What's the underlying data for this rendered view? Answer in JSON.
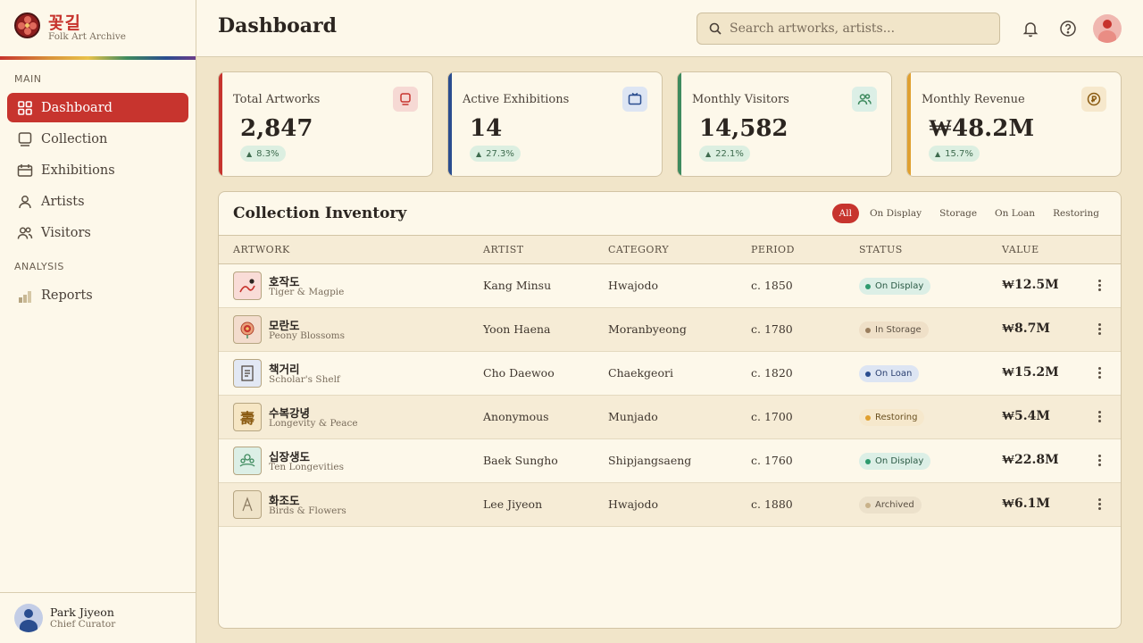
{
  "brand": {
    "name": "꽃길",
    "subtitle": "Folk Art Archive"
  },
  "sidebar": {
    "sections": [
      {
        "heading": "MAIN",
        "items": [
          {
            "label": "Dashboard",
            "icon": "grid-icon",
            "active": true
          },
          {
            "label": "Collection",
            "icon": "frame-icon"
          },
          {
            "label": "Exhibitions",
            "icon": "calendar-icon"
          },
          {
            "label": "Artists",
            "icon": "user-icon"
          },
          {
            "label": "Visitors",
            "icon": "users-icon"
          }
        ]
      },
      {
        "heading": "ANALYSIS",
        "items": [
          {
            "label": "Reports",
            "icon": "bar-chart-icon"
          }
        ]
      }
    ]
  },
  "user": {
    "name": "Park Jiyeon",
    "role": "Chief Curator"
  },
  "header": {
    "title": "Dashboard",
    "search_placeholder": "Search artworks, artists..."
  },
  "stats": [
    {
      "label": "Total Artworks",
      "value": "2,847",
      "change": "8.3%",
      "accent": "#c7342e",
      "icon": "frame-icon"
    },
    {
      "label": "Active Exhibitions",
      "value": "14",
      "change": "27.3%",
      "accent": "#2a4d8f",
      "icon": "calendar-icon"
    },
    {
      "label": "Monthly Visitors",
      "value": "14,582",
      "change": "22.1%",
      "accent": "#3e8a5e",
      "icon": "users-icon"
    },
    {
      "label": "Monthly Revenue",
      "value": "₩48.2M",
      "change": "15.7%",
      "accent": "#e0a030",
      "icon": "coin-icon"
    }
  ],
  "inventory": {
    "title": "Collection Inventory",
    "filters": [
      "All",
      "On Display",
      "Storage",
      "On Loan",
      "Restoring"
    ],
    "active_filter": "All",
    "columns": [
      "ARTWORK",
      "ARTIST",
      "CATEGORY",
      "PERIOD",
      "STATUS",
      "VALUE"
    ],
    "rows": [
      {
        "title_kr": "호작도",
        "title_en": "Tiger & Magpie",
        "artist": "Kang Minsu",
        "category": "Hwajodo",
        "period": "c. 1850",
        "status": "On Display",
        "value": "₩12.5M"
      },
      {
        "title_kr": "모란도",
        "title_en": "Peony Blossoms",
        "artist": "Yoon Haena",
        "category": "Moranbyeong",
        "period": "c. 1780",
        "status": "In Storage",
        "value": "₩8.7M"
      },
      {
        "title_kr": "책거리",
        "title_en": "Scholar's Shelf",
        "artist": "Cho Daewoo",
        "category": "Chaekgeori",
        "period": "c. 1820",
        "status": "On Loan",
        "value": "₩15.2M"
      },
      {
        "title_kr": "수복강녕",
        "title_en": "Longevity & Peace",
        "artist": "Anonymous",
        "category": "Munjado",
        "period": "c. 1700",
        "status": "Restoring",
        "value": "₩5.4M"
      },
      {
        "title_kr": "십장생도",
        "title_en": "Ten Longevities",
        "artist": "Baek Sungho",
        "category": "Shipjangsaeng",
        "period": "c. 1760",
        "status": "On Display",
        "value": "₩22.8M"
      },
      {
        "title_kr": "화조도",
        "title_en": "Birds & Flowers",
        "artist": "Lee Jiyeon",
        "category": "Hwajodo",
        "period": "c. 1880",
        "status": "Archived",
        "value": "₩6.1M"
      }
    ],
    "thumb_glyph_row4": "壽"
  },
  "status_colors": {
    "On Display": {
      "bg": "#dcefe6",
      "fg": "#2b5a45",
      "dot": "#2e9a6e"
    },
    "In Storage": {
      "bg": "#efe0c8",
      "fg": "#5a4f42",
      "dot": "#9a7e5e"
    },
    "On Loan": {
      "bg": "#dde5f3",
      "fg": "#2a3f70",
      "dot": "#2a4d8f"
    },
    "Restoring": {
      "bg": "#f6e8cc",
      "fg": "#6a5020",
      "dot": "#e0a030"
    },
    "Archived": {
      "bg": "#ece1cb",
      "fg": "#5a4f42",
      "dot": "#c8b18a"
    }
  }
}
